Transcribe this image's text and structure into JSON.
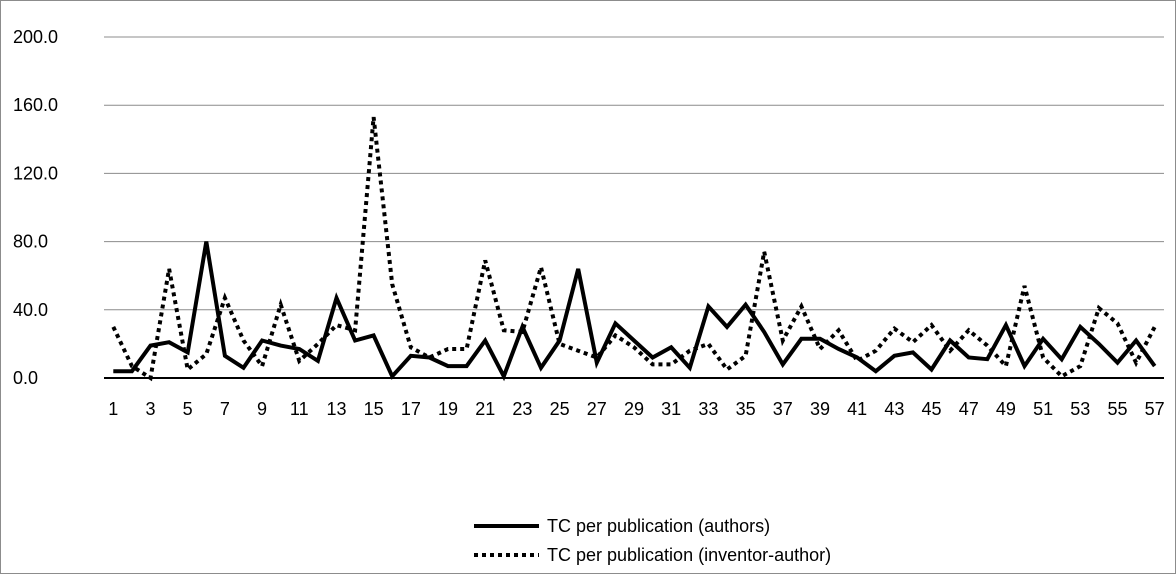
{
  "chart_data": {
    "type": "line",
    "title": "",
    "xlabel": "",
    "ylabel": "",
    "ylim": [
      0,
      200
    ],
    "y_ticks": [
      "0.0",
      "40.0",
      "80.0",
      "120.0",
      "160.0",
      "200.0"
    ],
    "y_tick_values": [
      0,
      40,
      80,
      120,
      160,
      200
    ],
    "x_tick_labels": [
      "1",
      "3",
      "5",
      "7",
      "9",
      "11",
      "13",
      "15",
      "17",
      "19",
      "21",
      "23",
      "25",
      "27",
      "29",
      "31",
      "33",
      "35",
      "37",
      "39",
      "41",
      "43",
      "45",
      "47",
      "49",
      "51",
      "53",
      "55",
      "57"
    ],
    "x": [
      1,
      2,
      3,
      4,
      5,
      6,
      7,
      8,
      9,
      10,
      11,
      12,
      13,
      14,
      15,
      16,
      17,
      18,
      19,
      20,
      21,
      22,
      23,
      24,
      25,
      26,
      27,
      28,
      29,
      30,
      31,
      32,
      33,
      34,
      35,
      36,
      37,
      38,
      39,
      40,
      41,
      42,
      43,
      44,
      45,
      46,
      47,
      48,
      49,
      50,
      51,
      52,
      53,
      54,
      55,
      56,
      57
    ],
    "grid": "horizontal",
    "legend_position": "bottom",
    "series": [
      {
        "name": "TC per publication (authors)",
        "style": "solid",
        "color": "#000000",
        "values": [
          4,
          4,
          19,
          21,
          15,
          80,
          13,
          6,
          22,
          19,
          17,
          10,
          47,
          22,
          25,
          1,
          13,
          12,
          7,
          7,
          22,
          1,
          30,
          6,
          22,
          64,
          9,
          32,
          22,
          12,
          18,
          6,
          42,
          30,
          43,
          27,
          8,
          23,
          23,
          17,
          12,
          4,
          13,
          15,
          5,
          22,
          12,
          11,
          31,
          7,
          23,
          11,
          30,
          20,
          9,
          22,
          7
        ]
      },
      {
        "name": "TC per publication (inventor-author)",
        "style": "dotted",
        "color": "#000000",
        "values": [
          30,
          7,
          0,
          64,
          5,
          14,
          47,
          22,
          7,
          43,
          10,
          20,
          31,
          28,
          153,
          55,
          18,
          12,
          17,
          17,
          69,
          28,
          27,
          65,
          20,
          16,
          12,
          25,
          18,
          8,
          8,
          16,
          20,
          5,
          13,
          74,
          22,
          42,
          17,
          28,
          10,
          16,
          29,
          21,
          31,
          16,
          28,
          19,
          7,
          54,
          12,
          1,
          7,
          41,
          32,
          9,
          30
        ]
      }
    ]
  }
}
